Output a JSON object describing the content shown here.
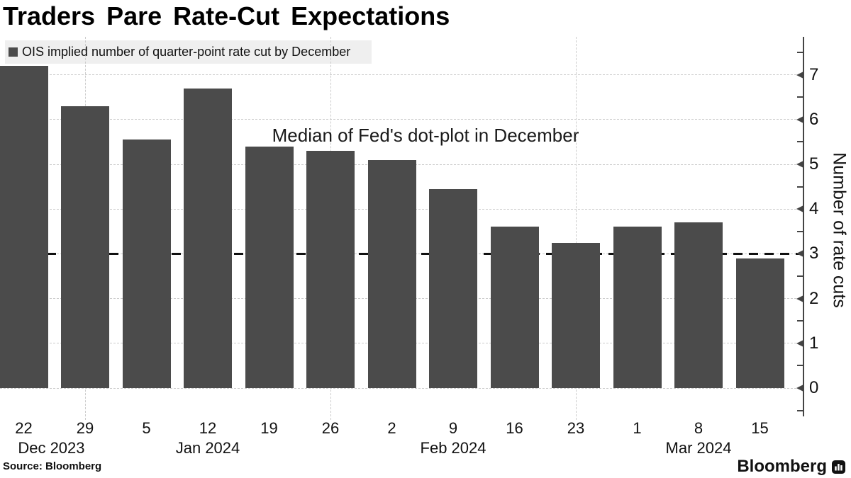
{
  "header": {
    "title": "Traders Pare Rate-Cut Expectations"
  },
  "legend": {
    "label": "OIS implied number of quarter-point rate cut by December"
  },
  "footer": {
    "source": "Source: Bloomberg",
    "brand": "Bloomberg",
    "brand_icon": "bar-chart-icon"
  },
  "chart_data": {
    "type": "bar",
    "title": "Traders Pare Rate-Cut Expectations",
    "legend": [
      "OIS implied number of quarter-point rate cut by December"
    ],
    "legend_position": "top-left",
    "annotation": "Median of Fed's dot-plot in December",
    "ylabel": "Number of rate cuts",
    "xlabel": "",
    "ylim": [
      0,
      7.85
    ],
    "y_ticks": [
      0,
      1,
      2,
      3,
      4,
      5,
      6,
      7
    ],
    "y_minor_tick_step": 0.5,
    "grid": "dotted horizontal gridlines at each integer; dotted vertical gridlines at Dec 29, Jan 26, Feb 23",
    "reference_line": {
      "value": 3,
      "style": "black dashed",
      "meaning": "Median of Fed's dot-plot in December"
    },
    "categories": [
      "Dec 22 2023",
      "Dec 29 2023",
      "Jan 5 2024",
      "Jan 12 2024",
      "Jan 19 2024",
      "Jan 26 2024",
      "Feb 2 2024",
      "Feb 9 2024",
      "Feb 16 2024",
      "Feb 23 2024",
      "Mar 1 2024",
      "Mar 8 2024",
      "Mar 15 2024"
    ],
    "x_tick_labels": [
      "22",
      "29",
      "5",
      "12",
      "19",
      "26",
      "2",
      "9",
      "16",
      "23",
      "1",
      "8",
      "15"
    ],
    "month_labels": [
      {
        "label": "Dec 2023",
        "anchor": 0.45
      },
      {
        "label": "Jan 2024",
        "anchor": 3
      },
      {
        "label": "Feb 2024",
        "anchor": 7
      },
      {
        "label": "Mar 2024",
        "anchor": 11
      }
    ],
    "values": [
      7.2,
      6.3,
      5.55,
      6.7,
      5.4,
      5.3,
      5.1,
      4.45,
      3.6,
      3.25,
      3.6,
      3.7,
      2.9
    ],
    "vertical_gridline_bars": [
      1,
      5,
      9
    ],
    "colors": {
      "bar": "#4b4b4b",
      "grid": "#cccccc",
      "axis": "#444444",
      "reference": "#111111",
      "legend_bg": "#efefef",
      "text": "#111111"
    }
  }
}
